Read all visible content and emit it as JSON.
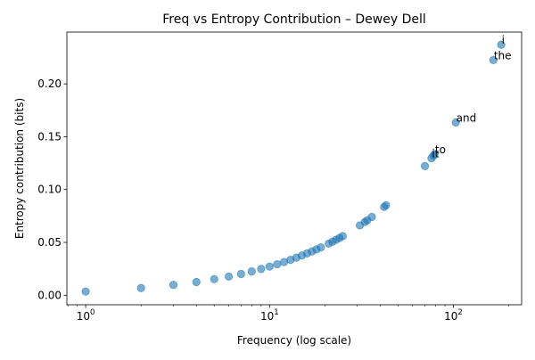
{
  "chart_data": {
    "type": "scatter",
    "title": "Freq vs Entropy Contribution – Dewey Dell",
    "xlabel": "Frequency (log scale)",
    "ylabel": "Entropy contribution (bits)",
    "xscale": "log",
    "xlim": [
      0.79,
      235
    ],
    "ylim": [
      -0.009,
      0.249
    ],
    "color": "#1f77b4",
    "x_ticks": [
      {
        "value": 1,
        "base": "10",
        "exp": "0"
      },
      {
        "value": 10,
        "base": "10",
        "exp": "1"
      },
      {
        "value": 100,
        "base": "10",
        "exp": "2"
      }
    ],
    "y_ticks": [
      {
        "value": 0.0,
        "label": "0.00"
      },
      {
        "value": 0.05,
        "label": "0.05"
      },
      {
        "value": 0.1,
        "label": "0.10"
      },
      {
        "value": 0.15,
        "label": "0.15"
      },
      {
        "value": 0.2,
        "label": "0.20"
      }
    ],
    "points": [
      {
        "x": 1,
        "y": 0.0035
      },
      {
        "x": 2,
        "y": 0.0068
      },
      {
        "x": 3,
        "y": 0.0098
      },
      {
        "x": 4,
        "y": 0.0125
      },
      {
        "x": 5,
        "y": 0.0152
      },
      {
        "x": 6,
        "y": 0.0177
      },
      {
        "x": 7,
        "y": 0.0201
      },
      {
        "x": 8,
        "y": 0.0225
      },
      {
        "x": 9,
        "y": 0.0248
      },
      {
        "x": 10,
        "y": 0.0271
      },
      {
        "x": 11,
        "y": 0.0293
      },
      {
        "x": 12,
        "y": 0.0314
      },
      {
        "x": 13,
        "y": 0.0335
      },
      {
        "x": 14,
        "y": 0.0356
      },
      {
        "x": 15,
        "y": 0.0376
      },
      {
        "x": 16,
        "y": 0.0396
      },
      {
        "x": 17,
        "y": 0.0415
      },
      {
        "x": 18,
        "y": 0.0434
      },
      {
        "x": 19,
        "y": 0.0453
      },
      {
        "x": 21,
        "y": 0.0489
      },
      {
        "x": 22,
        "y": 0.0507
      },
      {
        "x": 23,
        "y": 0.0525
      },
      {
        "x": 24,
        "y": 0.0542
      },
      {
        "x": 25,
        "y": 0.0559
      },
      {
        "x": 31,
        "y": 0.0661
      },
      {
        "x": 33,
        "y": 0.0693
      },
      {
        "x": 34,
        "y": 0.0709
      },
      {
        "x": 36,
        "y": 0.0741
      },
      {
        "x": 42,
        "y": 0.0836
      },
      {
        "x": 43,
        "y": 0.0851
      },
      {
        "x": 70,
        "y": 0.1222
      },
      {
        "x": 76,
        "y": 0.1296
      },
      {
        "x": 78,
        "y": 0.132
      },
      {
        "x": 79,
        "y": 0.1335
      },
      {
        "x": 103,
        "y": 0.1634
      },
      {
        "x": 165,
        "y": 0.2225
      },
      {
        "x": 182,
        "y": 0.237
      }
    ],
    "annotations": [
      {
        "text": "i",
        "x": 182,
        "y": 0.237
      },
      {
        "text": "the",
        "x": 165,
        "y": 0.2225
      },
      {
        "text": "and",
        "x": 103,
        "y": 0.1634
      },
      {
        "text": "to",
        "x": 79,
        "y": 0.1335
      },
      {
        "text": "it",
        "x": 76,
        "y": 0.1296
      }
    ]
  }
}
